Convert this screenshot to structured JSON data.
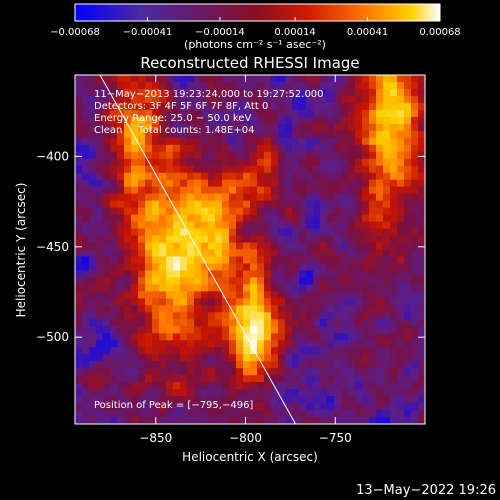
{
  "chart_data": {
    "type": "heatmap",
    "title": "Reconstructed RHESSI Image",
    "xlabel": "Heliocentric X (arcsec)",
    "ylabel": "Heliocentric Y (arcsec)",
    "xlim": [
      -895,
      -700
    ],
    "ylim": [
      -548,
      -355
    ],
    "x_ticks": [
      -850,
      -800,
      -750
    ],
    "x_tick_labels": [
      "−850",
      "−800",
      "−750"
    ],
    "y_ticks": [
      -400,
      -450,
      -500
    ],
    "y_tick_labels": [
      "−400",
      "−450",
      "−500"
    ],
    "grid": false,
    "colorbar": {
      "location": "top",
      "range": [
        -0.00068,
        0.00068
      ],
      "ticks": [
        -0.00068,
        -0.00041,
        -0.00014,
        0.00014,
        0.00041,
        0.00068
      ],
      "tick_labels": [
        "−0.00068",
        "−0.00041",
        "−0.00014",
        "0.00014",
        "0.00041",
        "0.00068"
      ],
      "unit_label": "(photons cm⁻² s⁻¹ asec⁻²)"
    },
    "colormap_stops": [
      "#0000ff",
      "#5a1e8c",
      "#7a1040",
      "#c81400",
      "#ff7800",
      "#ffd200",
      "#ffffff"
    ],
    "annotations": [
      "11−May−2013 19:23:24.000 to 19:27:52.000",
      "Detectors: 3F 4F 5F 6F 7F 8F, Att 0",
      "Energy Range: 25.0 − 50.0 keV",
      "Clean     Total counts: 1.48E+04"
    ],
    "peak_label": "Position of Peak = [−795,−496]",
    "peak_position": [
      -795,
      -496
    ],
    "limb_line": [
      [
        -885,
        -348
      ],
      [
        -771,
        -550
      ]
    ]
  },
  "footer": {
    "date": "13−May−2022 19:26"
  }
}
